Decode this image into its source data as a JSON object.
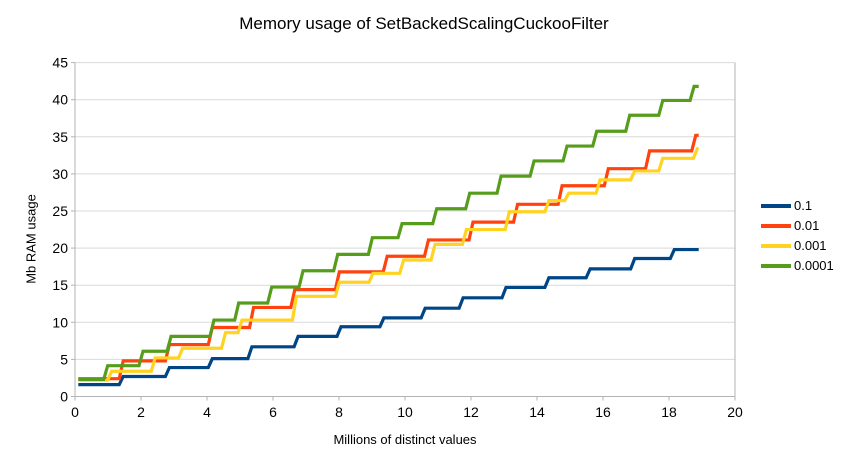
{
  "title": "Memory usage of SetBackedScalingCuckooFilter",
  "colors": {
    "background": "#ffffff",
    "gridline": "#d9d9d9",
    "axis": "#b3b3b3",
    "text": "#000000"
  },
  "chart_data": {
    "type": "line",
    "step": true,
    "title": "Memory usage of SetBackedScalingCuckooFilter",
    "xlabel": "Millions of distinct values",
    "ylabel": "Mb RAM usage",
    "xlim": [
      0,
      20
    ],
    "ylim": [
      0,
      45
    ],
    "x_ticks": [
      0,
      2,
      4,
      6,
      8,
      10,
      12,
      14,
      16,
      18,
      20
    ],
    "y_ticks": [
      0,
      5,
      10,
      15,
      20,
      25,
      30,
      35,
      40,
      45
    ],
    "grid": "horizontal",
    "legend_position": "right",
    "x_end": 18.9,
    "series": [
      {
        "name": "0.1",
        "color": "#004586",
        "steps": [
          [
            0.1,
            1.6
          ],
          [
            1.4,
            2.7
          ],
          [
            2.8,
            3.9
          ],
          [
            4.1,
            5.1
          ],
          [
            5.3,
            6.7
          ],
          [
            6.7,
            8.1
          ],
          [
            8.0,
            9.4
          ],
          [
            9.3,
            10.6
          ],
          [
            10.55,
            11.9
          ],
          [
            11.7,
            13.3
          ],
          [
            13.0,
            14.7
          ],
          [
            14.3,
            16.0
          ],
          [
            15.55,
            17.2
          ],
          [
            16.9,
            18.6
          ],
          [
            18.1,
            19.8
          ]
        ]
      },
      {
        "name": "0.01",
        "color": "#FF420E",
        "steps": [
          [
            0.1,
            2.4
          ],
          [
            1.4,
            4.8
          ],
          [
            2.8,
            7.0
          ],
          [
            4.1,
            9.3
          ],
          [
            5.35,
            12.0
          ],
          [
            6.6,
            14.4
          ],
          [
            7.95,
            16.8
          ],
          [
            9.4,
            18.9
          ],
          [
            10.65,
            21.1
          ],
          [
            12.0,
            23.5
          ],
          [
            13.35,
            25.9
          ],
          [
            14.7,
            28.4
          ],
          [
            16.1,
            30.7
          ],
          [
            17.35,
            33.1
          ],
          [
            18.75,
            35.2
          ]
        ]
      },
      {
        "name": "0.001",
        "color": "#FFD320",
        "steps": [
          [
            0.1,
            2.2
          ],
          [
            1.05,
            3.4
          ],
          [
            2.37,
            5.2
          ],
          [
            3.2,
            6.5
          ],
          [
            4.5,
            8.6
          ],
          [
            5.0,
            10.3
          ],
          [
            6.65,
            13.5
          ],
          [
            7.95,
            15.4
          ],
          [
            8.97,
            16.6
          ],
          [
            9.9,
            18.4
          ],
          [
            10.85,
            20.5
          ],
          [
            11.8,
            22.5
          ],
          [
            13.1,
            24.9
          ],
          [
            14.3,
            26.4
          ],
          [
            14.9,
            27.4
          ],
          [
            15.85,
            29.2
          ],
          [
            16.9,
            30.4
          ],
          [
            17.75,
            32.1
          ],
          [
            18.8,
            33.4
          ]
        ]
      },
      {
        "name": "0.0001",
        "color": "#579D1C",
        "steps": [
          [
            0.1,
            2.3
          ],
          [
            0.93,
            4.15
          ],
          [
            2.0,
            6.1
          ],
          [
            2.85,
            8.1
          ],
          [
            4.15,
            10.3
          ],
          [
            4.9,
            12.6
          ],
          [
            5.9,
            14.75
          ],
          [
            6.85,
            16.95
          ],
          [
            7.9,
            19.15
          ],
          [
            8.95,
            21.4
          ],
          [
            9.85,
            23.3
          ],
          [
            10.9,
            25.3
          ],
          [
            11.9,
            27.4
          ],
          [
            12.85,
            29.7
          ],
          [
            13.85,
            31.75
          ],
          [
            14.85,
            33.75
          ],
          [
            15.75,
            35.75
          ],
          [
            16.75,
            37.9
          ],
          [
            17.75,
            39.9
          ],
          [
            18.7,
            41.8
          ]
        ]
      }
    ]
  }
}
